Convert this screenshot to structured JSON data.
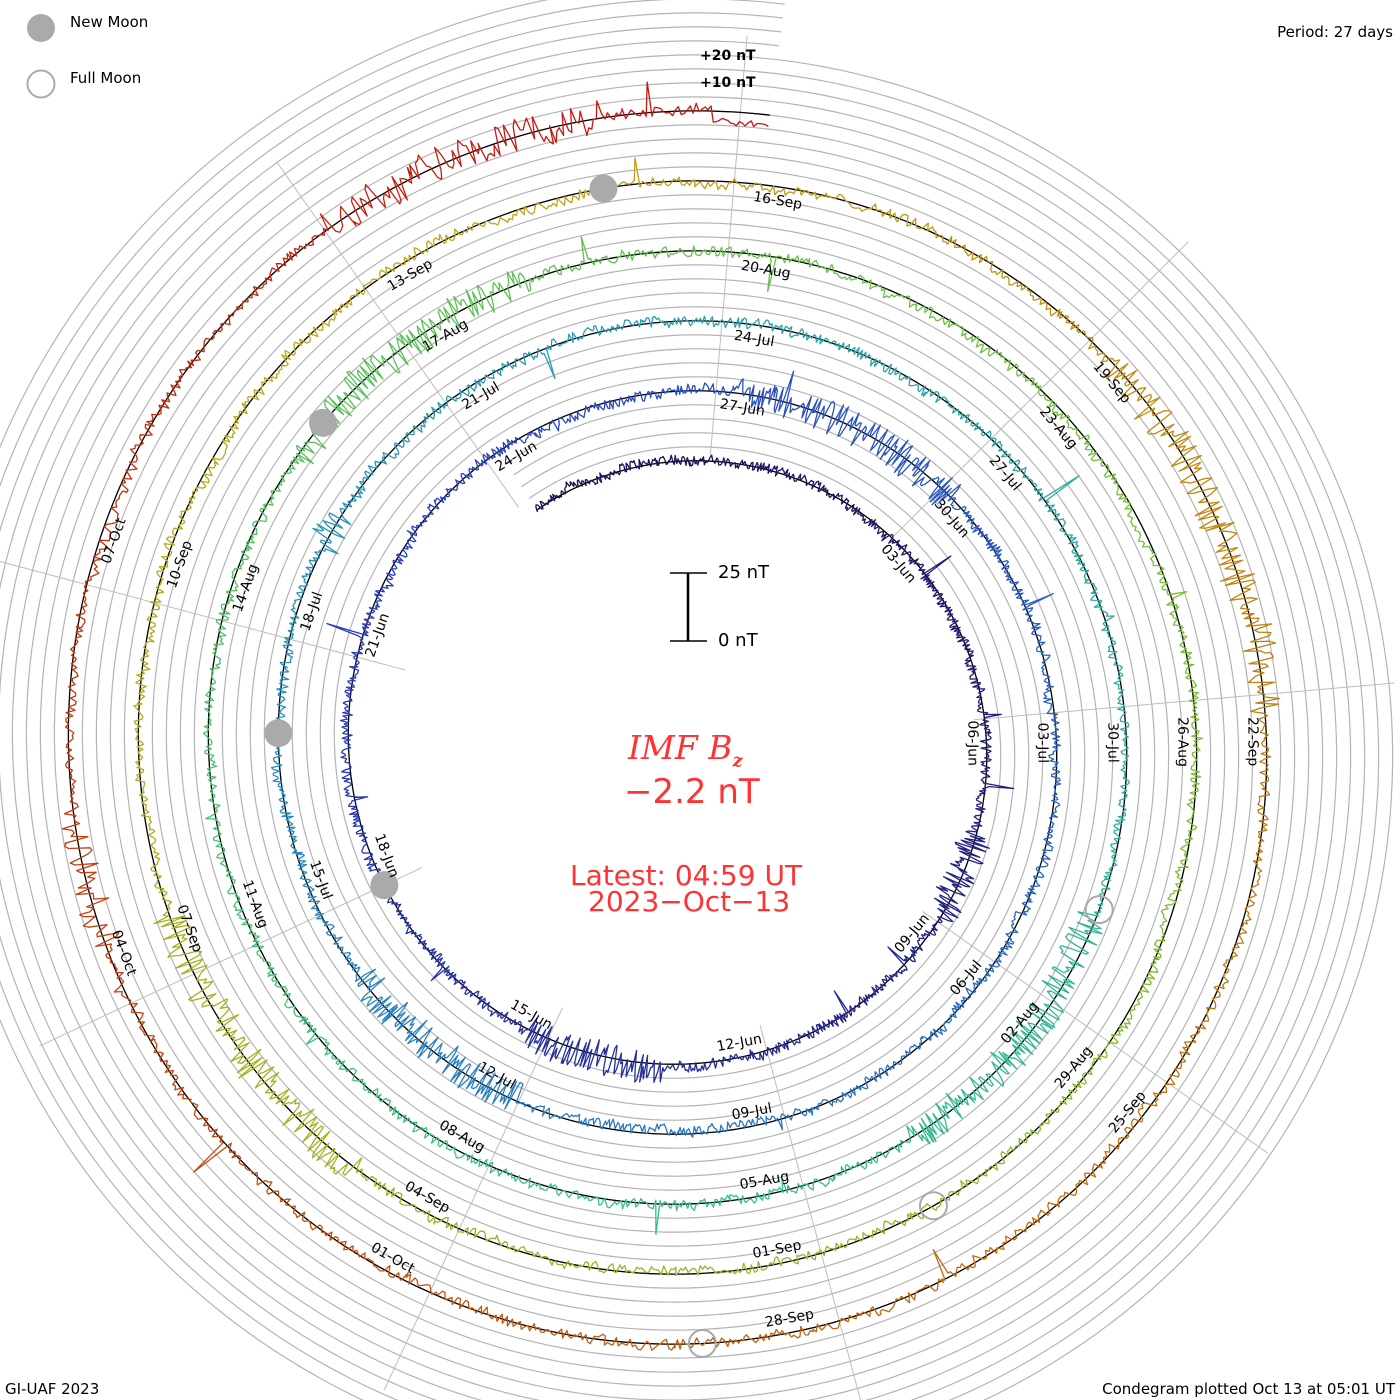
{
  "legend": {
    "new_moon": "New Moon",
    "full_moon": "Full Moon"
  },
  "period_label": "Period: 27 days",
  "footer": {
    "left": "GI-UAF 2023",
    "right": "Condegram plotted Oct 13 at 05:01 UT"
  },
  "center": {
    "title_main": "IMF B",
    "title_sub": "z",
    "value": "−2.2 nT",
    "latest": "Latest: 04:59 UT",
    "date": "2023−Oct−13"
  },
  "scale_bar": {
    "top_label": "25 nT",
    "bottom_label": "0 nT"
  },
  "chart_data": {
    "type": "line",
    "subtype": "spiral-condegram",
    "title": "IMF Bz",
    "period_days": 27,
    "units": "nT",
    "grid_step_nT": 5,
    "ring_labels": [
      "+20 nT",
      "+10 nT"
    ],
    "start_date": "2023-05-28",
    "end_date": "2023-10-13 04:59",
    "reference_date": "2023-06-27",
    "start_day_offset": -29.8,
    "end_day_offset": 108.2,
    "latest_value": -2.2,
    "date_labels": {
      "first_day_offset": -24,
      "step_days": 3,
      "labels": [
        "03-Jun",
        "06-Jun",
        "09-Jun",
        "12-Jun",
        "15-Jun",
        "18-Jun",
        "21-Jun",
        "24-Jun",
        "27-Jun",
        "30-Jun",
        "03-Jul",
        "06-Jul",
        "09-Jul",
        "12-Jul",
        "15-Jul",
        "18-Jul",
        "21-Jul",
        "24-Jul",
        "27-Jul",
        "30-Jul",
        "02-Aug",
        "05-Aug",
        "08-Aug",
        "11-Aug",
        "14-Aug",
        "17-Aug",
        "20-Aug",
        "23-Aug",
        "26-Aug",
        "29-Aug",
        "01-Sep",
        "04-Sep",
        "07-Sep",
        "10-Sep",
        "13-Sep",
        "16-Sep",
        "19-Sep",
        "22-Sep",
        "25-Sep",
        "28-Sep",
        "01-Oct",
        "04-Oct",
        "07-Oct"
      ]
    },
    "new_moons_day_offsets": [
      -9,
      20,
      50,
      80
    ],
    "full_moons_day_offsets": [
      35,
      65,
      94
    ],
    "color_stops": [
      {
        "day": -30,
        "color": "#1c0c4e"
      },
      {
        "day": -5,
        "color": "#2a3fbf"
      },
      {
        "day": 20,
        "color": "#2a8fc0"
      },
      {
        "day": 40,
        "color": "#35c08a"
      },
      {
        "day": 60,
        "color": "#7cc030"
      },
      {
        "day": 78,
        "color": "#c0a818"
      },
      {
        "day": 92,
        "color": "#c06a10"
      },
      {
        "day": 108,
        "color": "#c81010"
      }
    ]
  }
}
